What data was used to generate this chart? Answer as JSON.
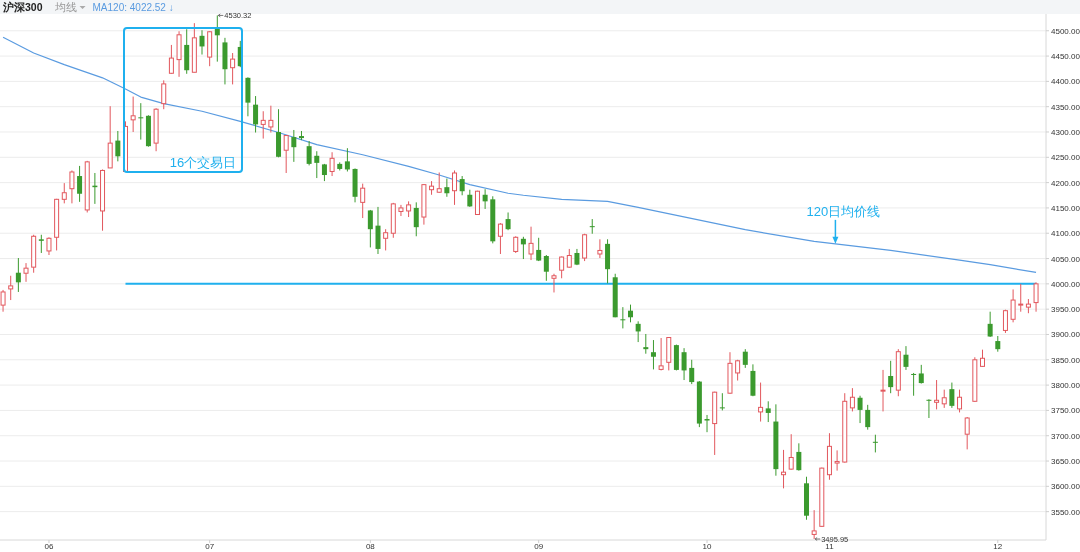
{
  "chart_data": {
    "type": "candlestick",
    "title": "沪深300",
    "annotations": [
      "均线",
      "16个交易日",
      "4530.32",
      "3495.95",
      {
        "text": "120日均价线",
        "y": 4079
      }
    ],
    "categories": [
      null,
      null,
      null,
      null,
      null,
      null,
      "06",
      null,
      null,
      null,
      null,
      null,
      null,
      null,
      null,
      null,
      null,
      null,
      null,
      null,
      null,
      null,
      null,
      null,
      null,
      null,
      null,
      "07",
      null,
      null,
      null,
      null,
      null,
      null,
      null,
      null,
      null,
      null,
      null,
      null,
      null,
      null,
      null,
      null,
      null,
      null,
      null,
      null,
      "08",
      null,
      null,
      null,
      null,
      null,
      null,
      null,
      null,
      null,
      null,
      null,
      null,
      null,
      null,
      null,
      null,
      null,
      null,
      null,
      null,
      null,
      "09",
      null,
      null,
      null,
      null,
      null,
      null,
      null,
      null,
      null,
      null,
      null,
      null,
      null,
      null,
      null,
      null,
      null,
      null,
      null,
      null,
      null,
      "10",
      null,
      null,
      null,
      null,
      null,
      null,
      null,
      null,
      null,
      null,
      null,
      null,
      null,
      null,
      null,
      "11",
      null,
      null,
      null,
      null,
      null,
      null,
      null,
      null,
      null,
      null,
      null,
      null,
      null,
      null,
      null,
      null,
      null,
      null,
      null,
      null,
      null,
      "12",
      null,
      null,
      null,
      null,
      null
    ],
    "ohlc": [
      [
        3958,
        3988,
        3945,
        3984
      ],
      [
        3990,
        4016,
        3968,
        3996
      ],
      [
        4022,
        4051,
        3984,
        4003
      ],
      [
        4021,
        4041,
        4004,
        4031
      ],
      [
        4033,
        4097,
        4022,
        4094
      ],
      [
        4088,
        4097,
        4061,
        4085
      ],
      [
        4065,
        4092,
        4057,
        4090
      ],
      [
        4092,
        4168,
        4066,
        4167
      ],
      [
        4167,
        4199,
        4159,
        4180
      ],
      [
        4188,
        4224,
        4159,
        4221
      ],
      [
        4213,
        4233,
        4162,
        4178
      ],
      [
        4146,
        4243,
        4141,
        4241
      ],
      [
        4194,
        4219,
        4158,
        4191
      ],
      [
        4144,
        4226,
        4105,
        4224
      ],
      [
        4229,
        4351,
        4229,
        4278
      ],
      [
        4283,
        4302,
        4242,
        4252
      ],
      [
        4222,
        4321,
        4222,
        4311
      ],
      [
        4324,
        4370,
        4300,
        4332
      ],
      [
        4329,
        4357,
        4285,
        4327
      ],
      [
        4332,
        4333,
        4271,
        4272
      ],
      [
        4278,
        4347,
        4262,
        4345
      ],
      [
        4356,
        4402,
        4345,
        4395
      ],
      [
        4416,
        4472,
        4415,
        4446
      ],
      [
        4443,
        4499,
        4409,
        4492
      ],
      [
        4472,
        4503,
        4415,
        4422
      ],
      [
        4418,
        4515,
        4418,
        4486
      ],
      [
        4490,
        4501,
        4453,
        4469
      ],
      [
        4448,
        4499,
        4430,
        4498
      ],
      [
        4504,
        4530.32,
        4439,
        4491
      ],
      [
        4477,
        4486,
        4394,
        4424
      ],
      [
        4427,
        4456,
        4394,
        4444
      ],
      [
        4468,
        4480,
        4428,
        4430
      ],
      [
        4407,
        4408,
        4331,
        4358
      ],
      [
        4354,
        4371,
        4299,
        4315
      ],
      [
        4315,
        4341,
        4287,
        4323
      ],
      [
        4310,
        4352,
        4299,
        4323
      ],
      [
        4300,
        4345,
        4250,
        4251
      ],
      [
        4264,
        4294,
        4219,
        4293
      ],
      [
        4290,
        4304,
        4241,
        4270
      ],
      [
        4292,
        4302,
        4284,
        4288
      ],
      [
        4272,
        4282,
        4234,
        4237
      ],
      [
        4253,
        4262,
        4209,
        4239
      ],
      [
        4236,
        4237,
        4203,
        4215
      ],
      [
        4222,
        4260,
        4213,
        4248
      ],
      [
        4237,
        4240,
        4224,
        4227
      ],
      [
        4242,
        4268,
        4222,
        4226
      ],
      [
        4227,
        4228,
        4161,
        4172
      ],
      [
        4161,
        4198,
        4130,
        4189
      ],
      [
        4145,
        4146,
        4072,
        4108
      ],
      [
        4115,
        4152,
        4059,
        4069
      ],
      [
        4090,
        4108,
        4066,
        4101
      ],
      [
        4100,
        4160,
        4091,
        4158
      ],
      [
        4143,
        4156,
        4134,
        4150
      ],
      [
        4144,
        4163,
        4132,
        4156
      ],
      [
        4150,
        4161,
        4094,
        4112
      ],
      [
        4132,
        4197,
        4117,
        4196
      ],
      [
        4186,
        4203,
        4176,
        4193
      ],
      [
        4181,
        4220,
        4180,
        4188
      ],
      [
        4191,
        4208,
        4172,
        4179
      ],
      [
        4184,
        4224,
        4156,
        4219
      ],
      [
        4207,
        4213,
        4175,
        4183
      ],
      [
        4176,
        4186,
        4152,
        4153
      ],
      [
        4137,
        4184,
        4136,
        4183
      ],
      [
        4176,
        4187,
        4148,
        4163
      ],
      [
        4167,
        4173,
        4080,
        4084
      ],
      [
        4094,
        4120,
        4059,
        4118
      ],
      [
        4128,
        4141,
        4106,
        4108
      ],
      [
        4064,
        4094,
        4061,
        4092
      ],
      [
        4089,
        4093,
        4049,
        4078
      ],
      [
        4059,
        4113,
        4047,
        4080
      ],
      [
        4067,
        4091,
        4045,
        4046
      ],
      [
        4055,
        4057,
        4006,
        4024
      ],
      [
        4011,
        4020,
        3983,
        4016
      ],
      [
        4027,
        4054,
        4011,
        4053
      ],
      [
        4033,
        4069,
        4032,
        4056
      ],
      [
        4061,
        4069,
        4037,
        4038
      ],
      [
        4051,
        4099,
        4045,
        4097
      ],
      [
        4114,
        4128,
        4099,
        4112
      ],
      [
        4059,
        4088,
        4051,
        4066
      ],
      [
        4079,
        4088,
        4001,
        4029
      ],
      [
        4013,
        4020,
        3934,
        3934
      ],
      [
        3930,
        3954,
        3912,
        3928
      ],
      [
        3947,
        3959,
        3924,
        3934
      ],
      [
        3921,
        3926,
        3885,
        3906
      ],
      [
        3875,
        3901,
        3862,
        3871
      ],
      [
        3865,
        3889,
        3831,
        3856
      ],
      [
        3831,
        3893,
        3829,
        3838
      ],
      [
        3845,
        3895,
        3829,
        3894
      ],
      [
        3879,
        3880,
        3829,
        3830
      ],
      [
        3865,
        3873,
        3810,
        3829
      ],
      [
        3834,
        3850,
        3802,
        3806
      ],
      [
        3807,
        3808,
        3717,
        3724
      ],
      [
        3733,
        3741,
        3707,
        3730
      ],
      [
        3724,
        3787,
        3662,
        3786
      ],
      [
        3756,
        3784,
        3750,
        3754
      ],
      [
        3784,
        3865,
        3783,
        3843
      ],
      [
        3824,
        3850,
        3809,
        3848
      ],
      [
        3866,
        3871,
        3834,
        3840
      ],
      [
        3828,
        3841,
        3778,
        3779
      ],
      [
        3747,
        3805,
        3728,
        3756
      ],
      [
        3754,
        3768,
        3727,
        3745
      ],
      [
        3728,
        3762,
        3621,
        3634
      ],
      [
        3623,
        3672,
        3596,
        3628
      ],
      [
        3634,
        3703,
        3633,
        3657
      ],
      [
        3668,
        3685,
        3631,
        3632
      ],
      [
        3606,
        3619,
        3534,
        3542
      ],
      [
        3505,
        3553,
        3495.95,
        3512
      ],
      [
        3521,
        3637,
        3520,
        3636
      ],
      [
        3623,
        3705,
        3613,
        3679
      ],
      [
        3646,
        3671,
        3631,
        3649
      ],
      [
        3648,
        3784,
        3647,
        3768
      ],
      [
        3755,
        3794,
        3748,
        3776
      ],
      [
        3775,
        3779,
        3725,
        3751
      ],
      [
        3751,
        3761,
        3712,
        3717
      ],
      [
        3688,
        3702,
        3667,
        3686
      ],
      [
        3788,
        3830,
        3748,
        3790
      ],
      [
        3818,
        3848,
        3784,
        3796
      ],
      [
        3790,
        3871,
        3778,
        3866
      ],
      [
        3860,
        3877,
        3830,
        3836
      ],
      [
        3822,
        3824,
        3779,
        3820
      ],
      [
        3823,
        3840,
        3803,
        3804
      ],
      [
        3771,
        3772,
        3735,
        3769
      ],
      [
        3766,
        3810,
        3752,
        3770
      ],
      [
        3763,
        3791,
        3755,
        3775
      ],
      [
        3792,
        3805,
        3755,
        3759
      ],
      [
        3753,
        3791,
        3746,
        3776
      ],
      [
        3703,
        3737,
        3673,
        3735
      ],
      [
        3768,
        3855,
        3767,
        3850
      ],
      [
        3837,
        3870,
        3836,
        3853
      ],
      [
        3921,
        3945,
        3895,
        3896
      ],
      [
        3887,
        3897,
        3866,
        3871
      ],
      [
        3908,
        3949,
        3903,
        3947
      ],
      [
        3930,
        3989,
        3924,
        3968
      ],
      [
        3958,
        4000,
        3945,
        3960
      ],
      [
        3954,
        3970,
        3942,
        3960
      ],
      [
        3963,
        4003,
        3945,
        4000
      ]
    ],
    "series": [
      {
        "type": "line",
        "name": "MA120: 4022.52 ↓",
        "color": "#5a9be0",
        "values": [
          4487,
          null,
          null,
          null,
          4456,
          null,
          null,
          null,
          4433,
          null,
          null,
          null,
          null,
          4407,
          null,
          null,
          4385,
          null,
          4369,
          null,
          null,
          4356,
          null,
          null,
          null,
          null,
          4341,
          null,
          null,
          null,
          null,
          4321,
          null,
          null,
          null,
          null,
          4299,
          null,
          null,
          null,
          null,
          4275,
          null,
          null,
          null,
          null,
          null,
          4255,
          null,
          null,
          null,
          null,
          null,
          4232,
          null,
          null,
          null,
          4215,
          null,
          null,
          null,
          4196,
          null,
          null,
          null,
          null,
          4179,
          null,
          4175,
          null,
          null,
          null,
          null,
          4167,
          null,
          null,
          null,
          null,
          null,
          4163,
          null,
          null,
          null,
          4151,
          null,
          null,
          null,
          null,
          null,
          null,
          null,
          null,
          null,
          null,
          null,
          null,
          null,
          4107,
          null,
          null,
          null,
          null,
          null,
          null,
          null,
          null,
          4084,
          null,
          null,
          null,
          null,
          null,
          null,
          null,
          null,
          null,
          4066,
          null,
          null,
          null,
          null,
          null,
          null,
          null,
          null,
          4047,
          null,
          null,
          null,
          4038,
          null,
          null,
          null,
          null,
          null,
          4022.52
        ]
      },
      {
        "type": "line",
        "color": "#1fb0ee",
        "values": [
          null,
          null,
          null,
          null,
          null,
          null,
          null,
          null,
          null,
          null,
          null,
          null,
          null,
          null,
          null,
          null,
          4000,
          4000,
          4000,
          4000,
          4000,
          4000,
          4000,
          4000,
          4000,
          4000,
          4000,
          4000,
          4000,
          4000,
          4000,
          4000,
          4000,
          4000,
          4000,
          4000,
          4000,
          4000,
          4000,
          4000,
          4000,
          4000,
          4000,
          4000,
          4000,
          4000,
          4000,
          4000,
          4000,
          4000,
          4000,
          4000,
          4000,
          4000,
          4000,
          4000,
          4000,
          4000,
          4000,
          4000,
          4000,
          4000,
          4000,
          4000,
          4000,
          4000,
          4000,
          4000,
          4000,
          4000,
          4000,
          4000,
          4000,
          4000,
          4000,
          4000,
          4000,
          4000,
          4000,
          4000,
          4000,
          4000,
          4000,
          4000,
          4000,
          4000,
          4000,
          4000,
          4000,
          4000,
          4000,
          4000,
          4000,
          4000,
          4000,
          4000,
          4000,
          4000,
          4000,
          4000,
          4000,
          4000,
          4000,
          4000,
          4000,
          4000,
          4000,
          4000,
          4000,
          4000,
          4000,
          4000,
          4000,
          4000,
          4000,
          4000,
          4000,
          4000,
          4000,
          4000,
          4000,
          4000,
          4000,
          4000,
          4000,
          4000,
          4000,
          4000,
          4000,
          4000,
          4000,
          4000,
          4000,
          4000,
          4000,
          4000
        ]
      }
    ],
    "ylim": [
      3494,
      4541
    ],
    "yticks": [
      {
        "value": 3550,
        "label": "3550.00"
      },
      {
        "value": 3600,
        "label": "3600.00"
      },
      {
        "value": 3650,
        "label": "3650.00"
      },
      {
        "value": 3700,
        "label": "3700.00"
      },
      {
        "value": 3750,
        "label": "3750.00"
      },
      {
        "value": 3800,
        "label": "3800.00"
      },
      {
        "value": 3850,
        "label": "3850.00"
      },
      {
        "value": 3900,
        "label": "3900.00"
      },
      {
        "value": 3950,
        "label": "3950.00"
      },
      {
        "value": 4000,
        "label": "4000.00"
      },
      {
        "value": 4050,
        "label": "4050.00"
      },
      {
        "value": 4100,
        "label": "4100.00"
      },
      {
        "value": 4150,
        "label": "4150.00"
      },
      {
        "value": 4200,
        "label": "4200.00"
      },
      {
        "value": 4250,
        "label": "4250.00"
      },
      {
        "value": 4300,
        "label": "4300.00"
      },
      {
        "value": 4350,
        "label": "4350.00"
      },
      {
        "value": 4400,
        "label": "4400.00"
      },
      {
        "value": 4450,
        "label": "4450.00"
      },
      {
        "value": 4500,
        "label": "4500.00"
      }
    ],
    "grid": "y",
    "legend": "top left"
  }
}
